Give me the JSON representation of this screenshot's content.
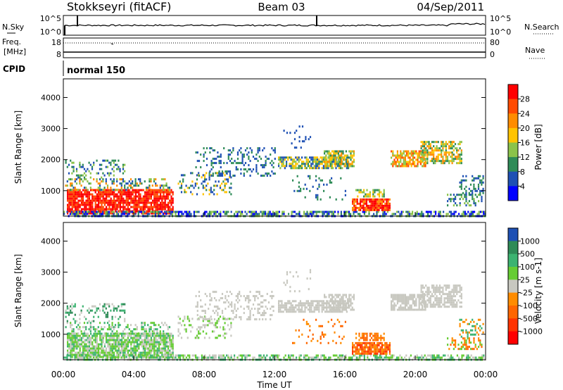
{
  "header": {
    "station": "Stokkseyri (fitACF)",
    "beam": "Beam 03",
    "date": "04/Sep/2011"
  },
  "noise_panel": {
    "left_label": "N.Sky",
    "right_label": "N.Search",
    "left_ticks": [
      "10^5",
      "10^0"
    ],
    "right_ticks": [
      "10^5",
      "10^0"
    ]
  },
  "freq_panel": {
    "left_label_line1": "Freq.",
    "left_label_line2": "[MHz]",
    "right_label": "Nave",
    "left_ticks": [
      "18",
      "8"
    ],
    "right_ticks": [
      "80",
      "0"
    ]
  },
  "cpid_panel": {
    "label": "CPID",
    "mode": "normal 150"
  },
  "chart_data": [
    {
      "type": "heatmap",
      "ylabel": "Slant Range [km]",
      "ylim": [
        180,
        4600
      ],
      "yticks": [
        "4000",
        "3000",
        "2000",
        "1000"
      ],
      "xlim": [
        "00:00",
        "24:00"
      ],
      "colorbar_label": "Power [dB]",
      "colorbar_ticks": [
        "28",
        "24",
        "20",
        "16",
        "12",
        "8",
        "4"
      ],
      "colorbar_colors": [
        "#ff0000",
        "#ff4a00",
        "#ff8c00",
        "#ffc300",
        "#8bc34a",
        "#2e8b57",
        "#1e50b4",
        "#0000ff"
      ]
    },
    {
      "type": "heatmap",
      "ylabel": "Slant Range [km]",
      "ylim": [
        180,
        4600
      ],
      "yticks": [
        "4000",
        "3000",
        "2000",
        "1000"
      ],
      "xlim": [
        "00:00",
        "24:00"
      ],
      "xticks": [
        "00:00",
        "04:00",
        "08:00",
        "12:00",
        "16:00",
        "20:00",
        "00:00"
      ],
      "xlabel": "Time UT",
      "colorbar_label": "Velocity [m s-1]",
      "colorbar_ticks": [
        "1000",
        "500",
        "100",
        "25",
        "-25",
        "-100",
        "-500",
        "-1000"
      ],
      "colorbar_colors": [
        "#1e50b4",
        "#2e8b57",
        "#3cb371",
        "#66cc33",
        "#c8c8c0",
        "#ff8c00",
        "#ff6600",
        "#ff3300",
        "#ff0000"
      ]
    }
  ]
}
